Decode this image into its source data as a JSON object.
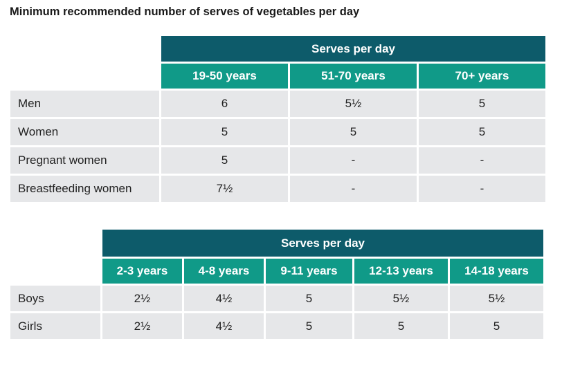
{
  "title": "Minimum recommended number of serves of vegetables per day",
  "adults_table": {
    "group_header": "Serves per day",
    "columns": [
      "19-50 years",
      "51-70 years",
      "70+ years"
    ],
    "rows": [
      {
        "label": "Men",
        "values": [
          "6",
          "5½",
          "5"
        ]
      },
      {
        "label": "Women",
        "values": [
          "5",
          "5",
          "5"
        ]
      },
      {
        "label": "Pregnant women",
        "values": [
          "5",
          "-",
          "-"
        ]
      },
      {
        "label": "Breastfeeding women",
        "values": [
          "7½",
          "-",
          "-"
        ]
      }
    ]
  },
  "children_table": {
    "group_header": "Serves per day",
    "columns": [
      "2-3 years",
      "4-8 years",
      "9-11 years",
      "12-13 years",
      "14-18 years"
    ],
    "rows": [
      {
        "label": "Boys",
        "values": [
          "2½",
          "4½",
          "5",
          "5½",
          "5½"
        ]
      },
      {
        "label": "Girls",
        "values": [
          "2½",
          "4½",
          "5",
          "5",
          "5"
        ]
      }
    ]
  },
  "colors": {
    "header_dark": "#0d5b6a",
    "header_teal": "#109a88",
    "cell_bg": "#e6e7e9"
  }
}
